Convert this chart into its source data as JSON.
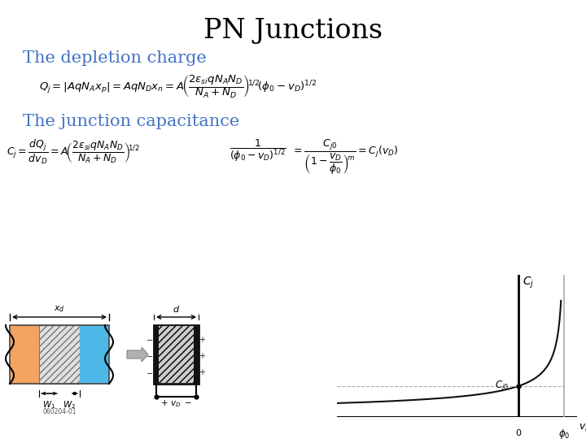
{
  "title": "PN Junctions",
  "title_fontsize": 24,
  "title_color": "#000000",
  "subtitle1": "The depletion charge",
  "subtitle2": "The junction capacitance",
  "subtitle_color": "#4472c4",
  "subtitle_fontsize": 15,
  "bg_color": "#ffffff",
  "orange_color": "#f4a460",
  "blue_color": "#4db8e8",
  "graph_curve_color": "#111111",
  "phi0": 0.7,
  "Cj0": 1.0,
  "vD_min": -2.8,
  "vD_max": 0.65,
  "fig_width": 7.2,
  "fig_height": 5.4
}
